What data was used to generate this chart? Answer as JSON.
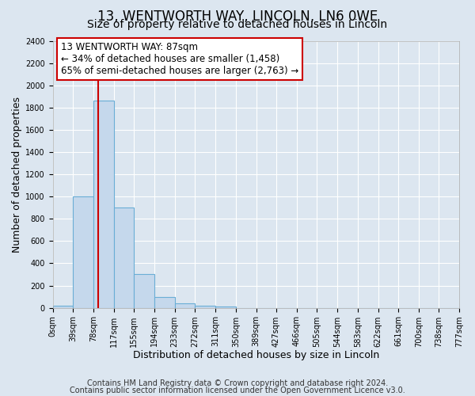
{
  "title": "13, WENTWORTH WAY, LINCOLN, LN6 0WE",
  "subtitle": "Size of property relative to detached houses in Lincoln",
  "xlabel": "Distribution of detached houses by size in Lincoln",
  "ylabel": "Number of detached properties",
  "bin_edges": [
    0,
    39,
    78,
    117,
    155,
    194,
    233,
    272,
    311,
    350,
    389,
    427,
    466,
    505,
    544,
    583,
    622,
    661,
    700,
    738,
    777
  ],
  "bin_counts": [
    20,
    1000,
    1860,
    900,
    300,
    100,
    40,
    20,
    15,
    0,
    0,
    0,
    0,
    0,
    0,
    0,
    0,
    0,
    0,
    0
  ],
  "tick_labels": [
    "0sqm",
    "39sqm",
    "78sqm",
    "117sqm",
    "155sqm",
    "194sqm",
    "233sqm",
    "272sqm",
    "311sqm",
    "350sqm",
    "389sqm",
    "427sqm",
    "466sqm",
    "505sqm",
    "544sqm",
    "583sqm",
    "622sqm",
    "661sqm",
    "700sqm",
    "738sqm",
    "777sqm"
  ],
  "property_line_x": 87,
  "bar_color": "#c5d8ec",
  "bar_edge_color": "#6aaed6",
  "bar_linewidth": 0.8,
  "red_line_color": "#cc0000",
  "ylim": [
    0,
    2400
  ],
  "yticks": [
    0,
    200,
    400,
    600,
    800,
    1000,
    1200,
    1400,
    1600,
    1800,
    2000,
    2200,
    2400
  ],
  "annotation_box_text": "13 WENTWORTH WAY: 87sqm\n← 34% of detached houses are smaller (1,458)\n65% of semi-detached houses are larger (2,763) →",
  "annotation_box_color": "#ffffff",
  "annotation_box_edge_color": "#cc0000",
  "footer_line1": "Contains HM Land Registry data © Crown copyright and database right 2024.",
  "footer_line2": "Contains public sector information licensed under the Open Government Licence v3.0.",
  "background_color": "#dce6f0",
  "plot_bg_color": "#dce6f0",
  "grid_color": "#ffffff",
  "title_fontsize": 12,
  "subtitle_fontsize": 10,
  "axis_label_fontsize": 9,
  "tick_fontsize": 7,
  "annotation_fontsize": 8.5,
  "footer_fontsize": 7
}
